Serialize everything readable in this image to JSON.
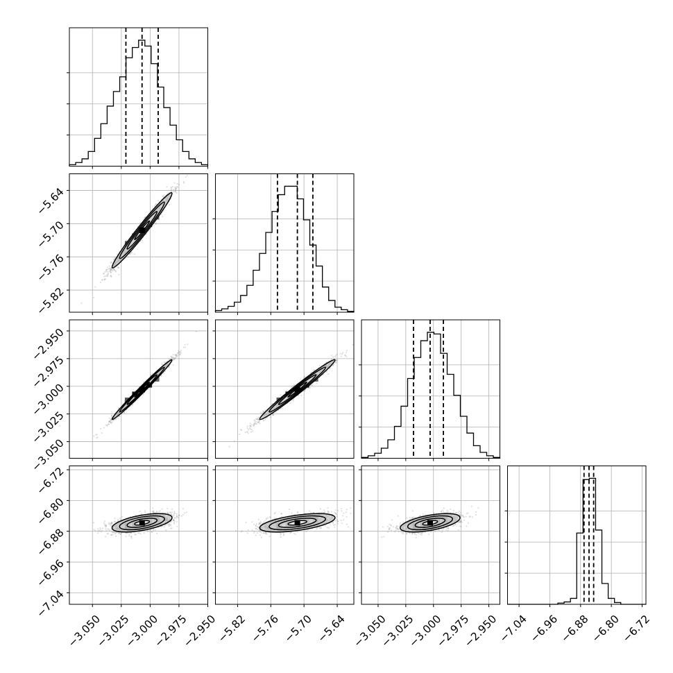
{
  "chart_data": {
    "type": "corner",
    "title": "",
    "parameter_labels": [
      "",
      "",
      "",
      ""
    ],
    "parameters": [
      {
        "range": [
          -3.07,
          -2.95
        ],
        "ticks": [
          -3.05,
          -3.025,
          -3.0,
          -2.975,
          -2.95
        ],
        "tick_labels": [
          "−3.050",
          "−3.025",
          "−3.000",
          "−2.975",
          "−2.950"
        ],
        "mean": -3.007,
        "std": 0.013,
        "quantiles": [
          -3.021,
          -3.007,
          -2.993
        ]
      },
      {
        "range": [
          -5.86,
          -5.61
        ],
        "ticks": [
          -5.82,
          -5.76,
          -5.7,
          -5.64
        ],
        "tick_labels": [
          "−5.82",
          "−5.76",
          "−5.70",
          "−5.64"
        ],
        "mean": -5.712,
        "std": 0.034,
        "quantiles": [
          -5.748,
          -5.712,
          -5.684
        ]
      },
      {
        "range": [
          -3.065,
          -2.94
        ],
        "ticks": [
          -3.05,
          -3.025,
          -3.0,
          -2.975,
          -2.95
        ],
        "tick_labels": [
          "−3.050",
          "−3.025",
          "−3.000",
          "−2.975",
          "−2.950"
        ],
        "mean": -3.003,
        "std": 0.0135,
        "quantiles": [
          -3.018,
          -3.003,
          -2.991
        ]
      },
      {
        "range": [
          -7.07,
          -6.71
        ],
        "ticks": [
          -7.04,
          -6.96,
          -6.88,
          -6.8,
          -6.72
        ],
        "tick_labels": [
          "−7.04",
          "−6.96",
          "−6.88",
          "−6.80",
          "−6.72"
        ],
        "mean": -6.858,
        "std": 0.012,
        "quantiles": [
          -6.871,
          -6.858,
          -6.846
        ]
      }
    ],
    "histograms": [
      {
        "counts": [
          2,
          5,
          10,
          20,
          38,
          58,
          82,
          102,
          122,
          148,
          162,
          172,
          164,
          140,
          108,
          80,
          56,
          36,
          20,
          10,
          5,
          2
        ]
      },
      {
        "counts": [
          2,
          4,
          7,
          12,
          20,
          32,
          50,
          70,
          95,
          120,
          140,
          150,
          150,
          135,
          110,
          80,
          55,
          30,
          14,
          6,
          3,
          1
        ]
      },
      {
        "counts": [
          1,
          3,
          6,
          12,
          22,
          38,
          62,
          95,
          120,
          140,
          150,
          148,
          125,
          100,
          75,
          50,
          30,
          15,
          7,
          3,
          1
        ]
      },
      {
        "counts": [
          0,
          0,
          0,
          0,
          0,
          0,
          0,
          0,
          2,
          4,
          10,
          120,
          210,
          212,
          125,
          35,
          10,
          3,
          0,
          0,
          0,
          0
        ]
      }
    ],
    "correlations": [
      [
        1.0,
        0.98,
        0.99,
        0.55
      ],
      [
        0.98,
        1.0,
        0.985,
        0.55
      ],
      [
        0.99,
        0.985,
        1.0,
        0.55
      ],
      [
        0.55,
        0.55,
        0.55,
        1.0
      ]
    ],
    "contour_levels_sigma": [
      0.5,
      1.0,
      1.5,
      2.0
    ],
    "grid": true,
    "colors": {
      "line": "#000000",
      "points": "#7f7f7f",
      "grid": "#b0b0b0"
    }
  }
}
